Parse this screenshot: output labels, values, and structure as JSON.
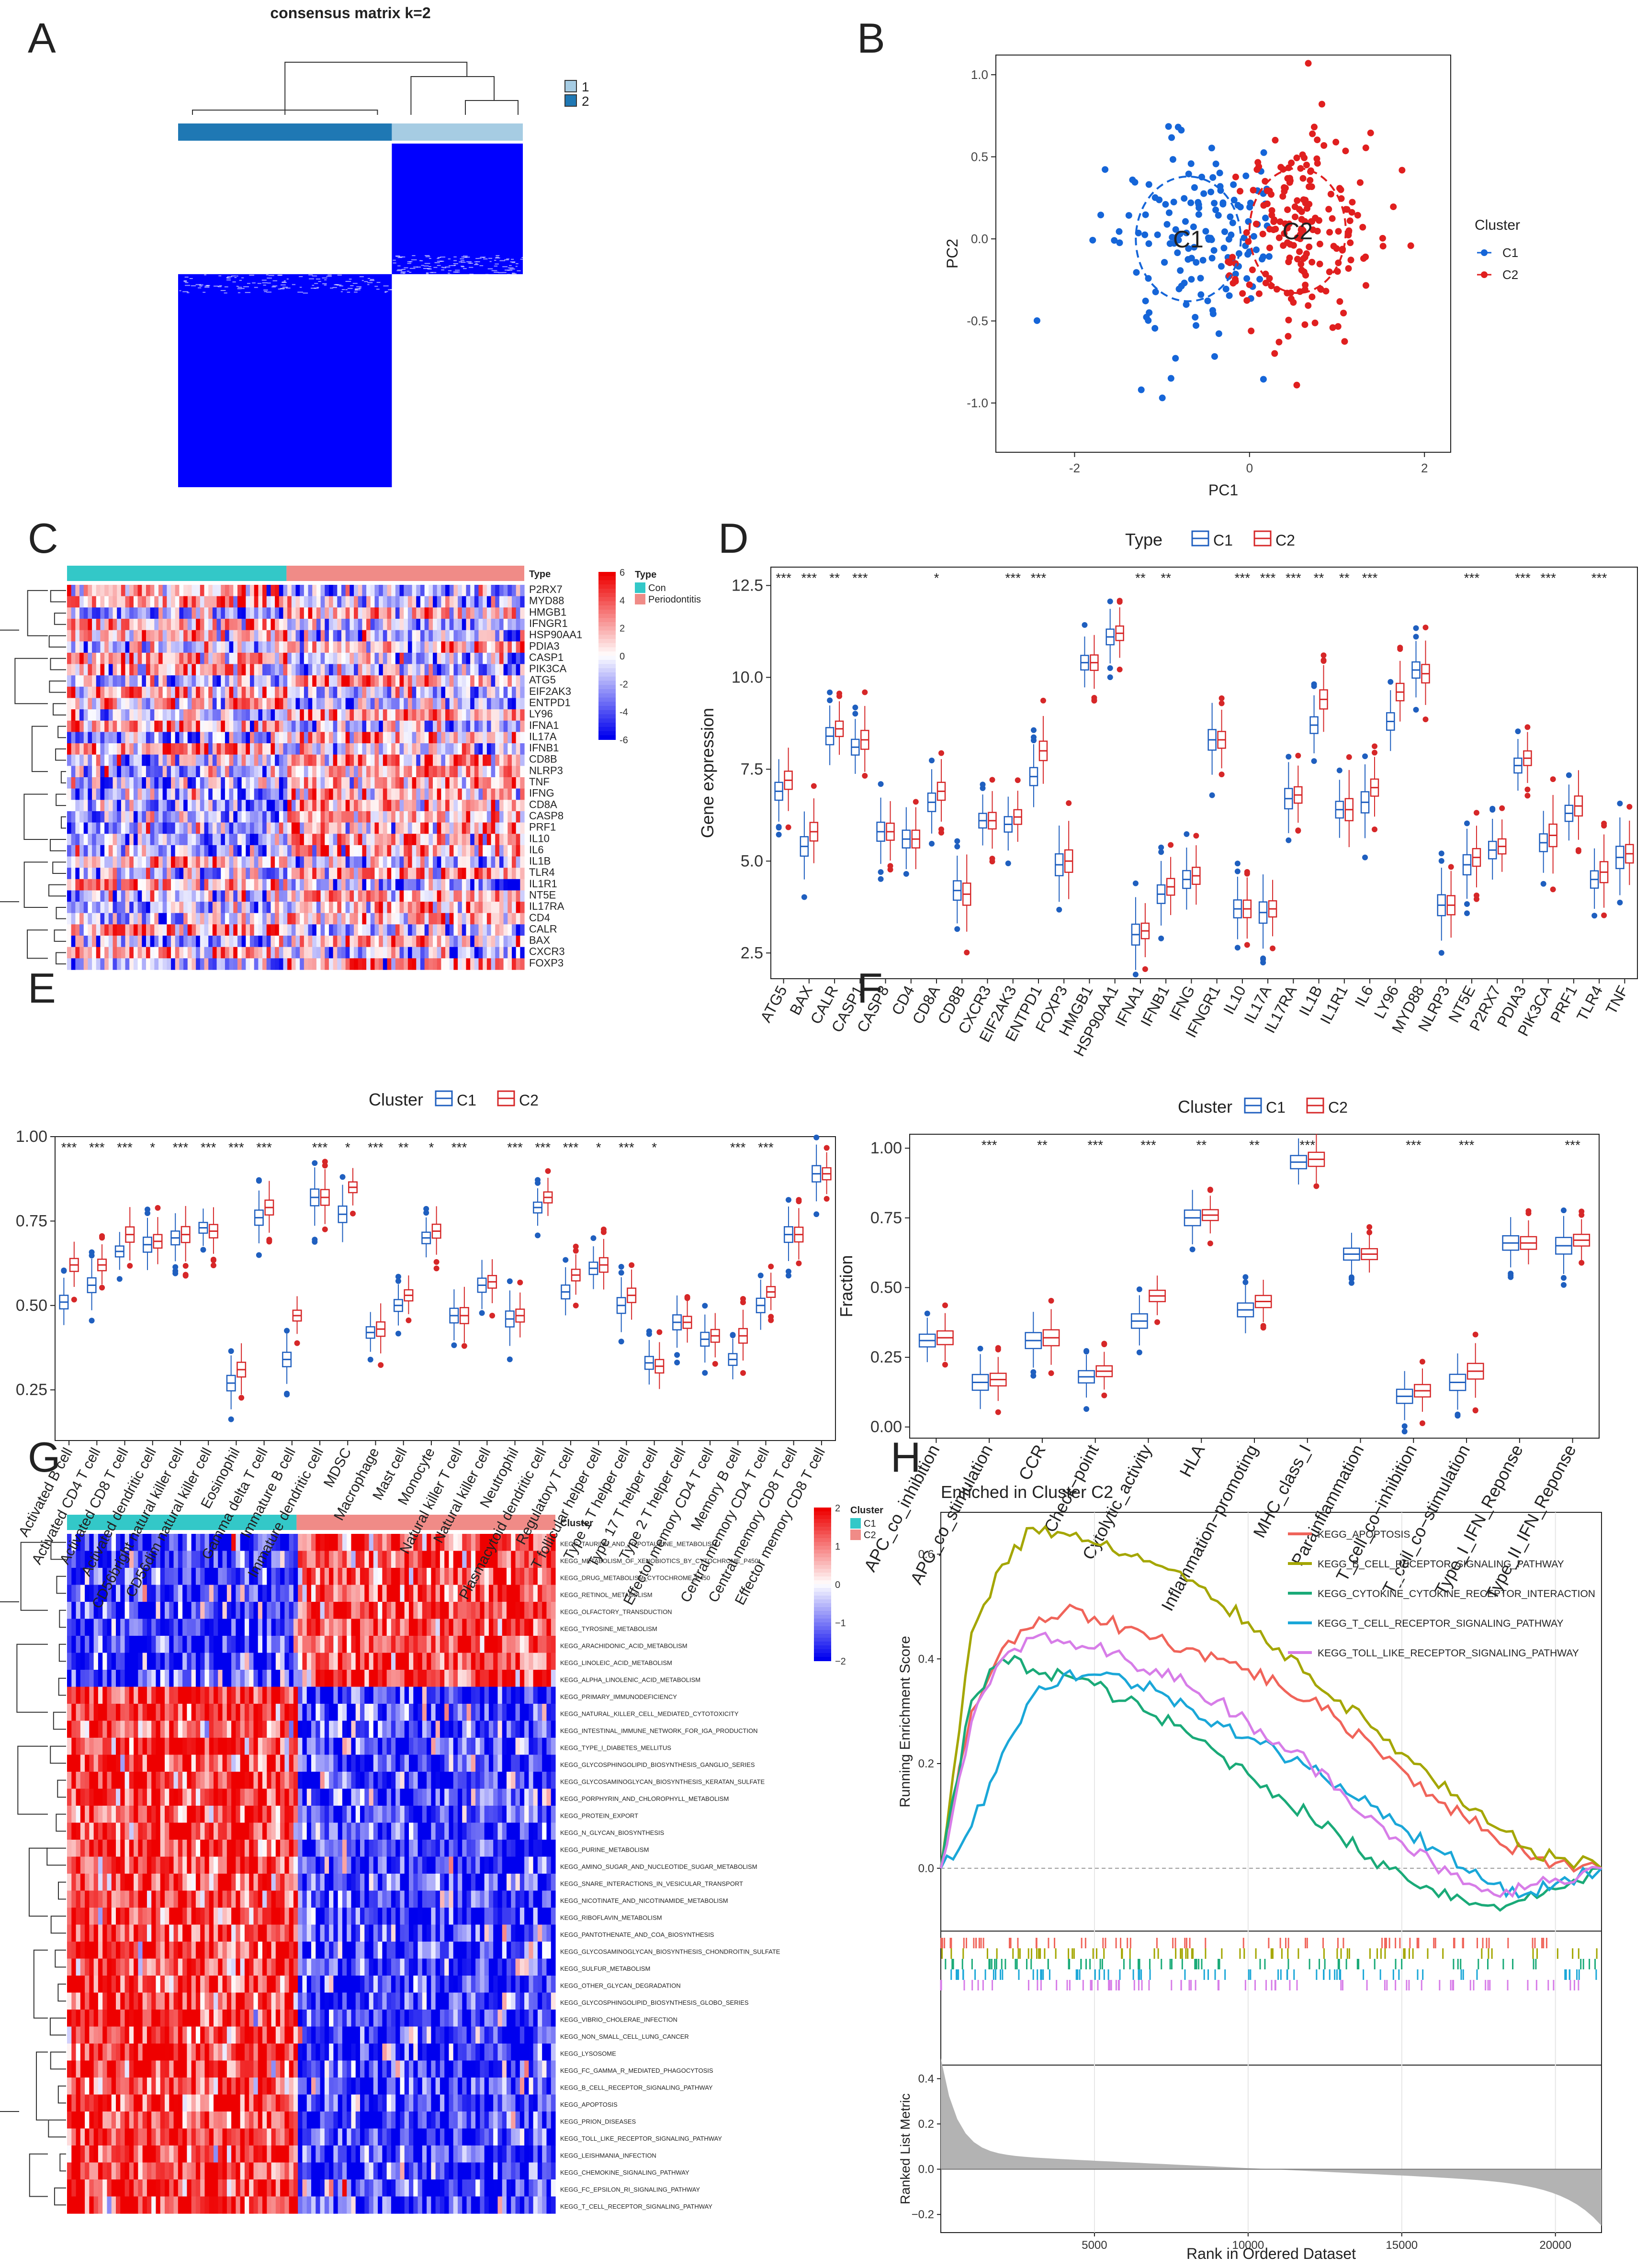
{
  "figure": {
    "panel_labels": [
      "A",
      "B",
      "C",
      "D",
      "E",
      "F",
      "G",
      "H"
    ]
  },
  "chart_data": [
    {
      "id": "A",
      "type": "heatmap",
      "title": "consensus matrix k=2",
      "legend": [
        "1",
        "2"
      ],
      "colors": {
        "cluster1": "#a6cce3",
        "cluster2": "#1f78b4",
        "high": "#0000ff",
        "low": "#ffffff"
      },
      "blocks": [
        {
          "cluster": "1",
          "fraction": 0.38
        },
        {
          "cluster": "2",
          "fraction": 0.62
        }
      ]
    },
    {
      "id": "B",
      "type": "scatter",
      "xlabel": "PC1",
      "ylabel": "PC2",
      "xlim": [
        -2.9,
        2.3
      ],
      "ylim": [
        -1.3,
        1.12
      ],
      "xticks": [
        "-2",
        "0",
        "2"
      ],
      "xtick_values": [
        -2,
        0,
        2
      ],
      "yticks": [
        "-1.0",
        "-0.5",
        "0.0",
        "0.5",
        "1.0"
      ],
      "ytick_values": [
        -1.0,
        -0.5,
        0.0,
        0.5,
        1.0
      ],
      "legend_title": "Cluster",
      "series": [
        {
          "name": "C1",
          "color": "#1565d8",
          "center": [
            -0.7,
            0.0
          ],
          "spread": [
            0.6,
            0.38
          ],
          "n": 150
        },
        {
          "name": "C2",
          "color": "#e01f1f",
          "center": [
            0.55,
            0.05
          ],
          "spread": [
            0.55,
            0.38
          ],
          "n": 190
        }
      ],
      "ellipse_labels": [
        "C1",
        "C2"
      ]
    },
    {
      "id": "C",
      "type": "heatmap",
      "annotation_title": "Type",
      "groups": [
        "Con",
        "Periodontitis"
      ],
      "group_colors": [
        "#33c8c8",
        "#f08b87"
      ],
      "group_fraction": 0.48,
      "scale_ticks": [
        "6",
        "4",
        "2",
        "0",
        "-2",
        "-4",
        "-6"
      ],
      "rows": [
        "P2RX7",
        "MYD88",
        "HMGB1",
        "IFNGR1",
        "HSP90AA1",
        "PDIA3",
        "CASP1",
        "PIK3CA",
        "ATG5",
        "EIF2AK3",
        "ENTPD1",
        "LY96",
        "IFNA1",
        "IL17A",
        "IFNB1",
        "CD8B",
        "NLRP3",
        "TNF",
        "IFNG",
        "CD8A",
        "CASP8",
        "PRF1",
        "IL10",
        "IL6",
        "IL1B",
        "TLR4",
        "IL1R1",
        "NT5E",
        "IL17RA",
        "CD4",
        "CALR",
        "BAX",
        "CXCR3",
        "FOXP3"
      ]
    },
    {
      "id": "D",
      "type": "boxplot",
      "legend_title": "Type",
      "legend": [
        "C1",
        "C2"
      ],
      "colors": [
        "#1f5fbf",
        "#d62728"
      ],
      "ylabel": "Gene expression",
      "ylim": [
        1.8,
        13.0
      ],
      "yticks": [
        "2.5",
        "5.0",
        "7.5",
        "10.0",
        "12.5"
      ],
      "ytick_values": [
        2.5,
        5.0,
        7.5,
        10.0,
        12.5
      ],
      "categories": [
        "ATG5",
        "BAX",
        "CALR",
        "CASP1",
        "CASP8",
        "CD4",
        "CD8A",
        "CD8B",
        "CXCR3",
        "EIF2AK3",
        "ENTPD1",
        "FOXP3",
        "HMGB1",
        "HSP90AA1",
        "IFNA1",
        "IFNB1",
        "IFNG",
        "IFNGR1",
        "IL10",
        "IL17A",
        "IL17RA",
        "IL1B",
        "IL1R1",
        "IL6",
        "LY96",
        "MYD88",
        "NLRP3",
        "NT5E",
        "P2RX7",
        "PDIA3",
        "PIK3CA",
        "PRF1",
        "TLR4",
        "TNF"
      ],
      "significance": [
        "***",
        "***",
        "**",
        "***",
        "",
        "",
        "*",
        "",
        "",
        "***",
        "***",
        "",
        "",
        "",
        "**",
        "**",
        "",
        "",
        "***",
        "***",
        "***",
        "**",
        "**",
        "***",
        "",
        "",
        "",
        "***",
        "",
        "***",
        "***",
        "",
        "***",
        ""
      ],
      "series": [
        {
          "name": "C1",
          "medians": [
            6.9,
            5.4,
            8.4,
            8.1,
            5.8,
            5.6,
            6.6,
            4.2,
            6.1,
            6.0,
            7.3,
            4.9,
            10.4,
            11.1,
            3.0,
            4.1,
            4.5,
            8.3,
            3.7,
            3.6,
            6.7,
            8.7,
            6.4,
            6.6,
            8.8,
            10.2,
            3.8,
            4.9,
            5.3,
            7.6,
            5.5,
            6.3,
            4.5,
            5.1
          ]
        },
        {
          "name": "C2",
          "medians": [
            7.2,
            5.8,
            8.6,
            8.3,
            5.8,
            5.6,
            6.9,
            4.1,
            6.1,
            6.2,
            8.0,
            5.0,
            10.4,
            11.2,
            3.1,
            4.3,
            4.6,
            8.3,
            3.7,
            3.7,
            6.8,
            9.4,
            6.4,
            7.0,
            9.6,
            10.1,
            3.8,
            5.1,
            5.4,
            7.8,
            5.7,
            6.5,
            4.7,
            5.2
          ]
        }
      ]
    },
    {
      "id": "E",
      "type": "boxplot",
      "legend_title": "Cluster",
      "legend": [
        "C1",
        "C2"
      ],
      "colors": [
        "#1f5fbf",
        "#d62728"
      ],
      "ylabel": "Fraction",
      "ylim": [
        0.1,
        1.0
      ],
      "yticks": [
        "0.25",
        "0.50",
        "0.75",
        "1.00"
      ],
      "ytick_values": [
        0.25,
        0.5,
        0.75,
        1.0
      ],
      "categories": [
        "Activated B cell",
        "Activated CD4 T cell",
        "Activated CD8 T cell",
        "Activated dendritic cell",
        "CD56bright natural killer cell",
        "CD56dim natural killer cell",
        "Eosinophil",
        "Gamma delta T cell",
        "Immature B cell",
        "Immature dendritic cell",
        "MDSC",
        "Macrophage",
        "Mast cell",
        "Monocyte",
        "Natural killer T cell",
        "Natural killer cell",
        "Neutrophil",
        "Plasmacytoid dendritic cell",
        "Regulatory T cell",
        "T follicular helper cell",
        "Type 1 T helper cell",
        "Type 17 T helper cell",
        "Type 2 T helper cell",
        "Effector memory CD4 T cell",
        "Memory B cell",
        "Central memory CD4 T cell",
        "Central memory CD8 T cell",
        "Effector memory CD8 T cell"
      ],
      "significance": [
        "***",
        "***",
        "***",
        "*",
        "***",
        "***",
        "***",
        "***",
        "",
        "***",
        "*",
        "***",
        "**",
        "*",
        "***",
        "",
        "***",
        "***",
        "***",
        "*",
        "***",
        "*",
        "",
        "",
        "***",
        "***",
        "",
        ""
      ],
      "series": [
        {
          "name": "C1",
          "medians": [
            0.51,
            0.56,
            0.66,
            0.68,
            0.7,
            0.73,
            0.27,
            0.76,
            0.34,
            0.82,
            0.77,
            0.42,
            0.5,
            0.7,
            0.47,
            0.56,
            0.46,
            0.79,
            0.54,
            0.61,
            0.5,
            0.33,
            0.45,
            0.4,
            0.34,
            0.5,
            0.71,
            0.89
          ]
        },
        {
          "name": "C2",
          "medians": [
            0.62,
            0.62,
            0.71,
            0.69,
            0.71,
            0.72,
            0.31,
            0.79,
            0.47,
            0.82,
            0.85,
            0.43,
            0.53,
            0.72,
            0.47,
            0.57,
            0.47,
            0.82,
            0.59,
            0.62,
            0.53,
            0.32,
            0.45,
            0.41,
            0.41,
            0.54,
            0.71,
            0.89
          ]
        }
      ]
    },
    {
      "id": "F",
      "type": "boxplot",
      "legend_title": "Cluster",
      "legend": [
        "C1",
        "C2"
      ],
      "colors": [
        "#1f5fbf",
        "#d62728"
      ],
      "ylabel": "Fraction",
      "ylim": [
        -0.04,
        1.05
      ],
      "yticks": [
        "0.00",
        "0.25",
        "0.50",
        "0.75",
        "1.00"
      ],
      "ytick_values": [
        0.0,
        0.25,
        0.5,
        0.75,
        1.0
      ],
      "categories": [
        "APC_co_inhibition",
        "APC_co_stimulation",
        "CCR",
        "Check−point",
        "Cytolytic_activity",
        "HLA",
        "Inflammation−promoting",
        "MHC_class_I",
        "Parainflammation",
        "T_cell_co−inhibition",
        "T_cell_co−stimulation",
        "Type_I_IFN_Reponse",
        "Type_II_IFN_Reponse"
      ],
      "significance": [
        "",
        "***",
        "**",
        "***",
        "***",
        "**",
        "**",
        "***",
        "",
        "***",
        "***",
        "",
        "***"
      ],
      "series": [
        {
          "name": "C1",
          "medians": [
            0.31,
            0.16,
            0.31,
            0.18,
            0.38,
            0.75,
            0.42,
            0.95,
            0.62,
            0.11,
            0.16,
            0.66,
            0.65
          ]
        },
        {
          "name": "C2",
          "medians": [
            0.32,
            0.17,
            0.32,
            0.2,
            0.47,
            0.76,
            0.45,
            0.96,
            0.62,
            0.13,
            0.2,
            0.66,
            0.67
          ]
        }
      ]
    },
    {
      "id": "G",
      "type": "heatmap",
      "annotation_title": "Cluster",
      "groups": [
        "C1",
        "C2"
      ],
      "group_colors": [
        "#33c8c8",
        "#f08b87"
      ],
      "group_fraction": 0.47,
      "scale_ticks": [
        "2",
        "1",
        "0",
        "−1",
        "−2"
      ],
      "rows": [
        "KEGG_TAURINE_AND_HYPOTAURINE_METABOLISM",
        "KEGG_METABOLISM_OF_XENOBIOTICS_BY_CYTOCHROME_P450",
        "KEGG_DRUG_METABOLISM_CYTOCHROME_P450",
        "KEGG_RETINOL_METABOLISM",
        "KEGG_OLFACTORY_TRANSDUCTION",
        "KEGG_TYROSINE_METABOLISM",
        "KEGG_ARACHIDONIC_ACID_METABOLISM",
        "KEGG_LINOLEIC_ACID_METABOLISM",
        "KEGG_ALPHA_LINOLENIC_ACID_METABOLISM",
        "KEGG_PRIMARY_IMMUNODEFICIENCY",
        "KEGG_NATURAL_KILLER_CELL_MEDIATED_CYTOTOXICITY",
        "KEGG_INTESTINAL_IMMUNE_NETWORK_FOR_IGA_PRODUCTION",
        "KEGG_TYPE_I_DIABETES_MELLITUS",
        "KEGG_GLYCOSPHINGOLIPID_BIOSYNTHESIS_GANGLIO_SERIES",
        "KEGG_GLYCOSAMINOGLYCAN_BIOSYNTHESIS_KERATAN_SULFATE",
        "KEGG_PORPHYRIN_AND_CHLOROPHYLL_METABOLISM",
        "KEGG_PROTEIN_EXPORT",
        "KEGG_N_GLYCAN_BIOSYNTHESIS",
        "KEGG_PURINE_METABOLISM",
        "KEGG_AMINO_SUGAR_AND_NUCLEOTIDE_SUGAR_METABOLISM",
        "KEGG_SNARE_INTERACTIONS_IN_VESICULAR_TRANSPORT",
        "KEGG_NICOTINATE_AND_NICOTINAMIDE_METABOLISM",
        "KEGG_RIBOFLAVIN_METABOLISM",
        "KEGG_PANTOTHENATE_AND_COA_BIOSYNTHESIS",
        "KEGG_GLYCOSAMINOGLYCAN_BIOSYNTHESIS_CHONDROITIN_SULFATE",
        "KEGG_SULFUR_METABOLISM",
        "KEGG_OTHER_GLYCAN_DEGRADATION",
        "KEGG_GLYCOSPHINGOLIPID_BIOSYNTHESIS_GLOBO_SERIES",
        "KEGG_VIBRIO_CHOLERAE_INFECTION",
        "KEGG_NON_SMALL_CELL_LUNG_CANCER",
        "KEGG_LYSOSOME",
        "KEGG_FC_GAMMA_R_MEDIATED_PHAGOCYTOSIS",
        "KEGG_B_CELL_RECEPTOR_SIGNALING_PATHWAY",
        "KEGG_APOPTOSIS",
        "KEGG_PRION_DISEASES",
        "KEGG_TOLL_LIKE_RECEPTOR_SIGNALING_PATHWAY",
        "KEGG_LEISHMANIA_INFECTION",
        "KEGG_CHEMOKINE_SIGNALING_PATHWAY",
        "KEGG_FC_EPSILON_RI_SIGNALING_PATHWAY",
        "KEGG_T_CELL_RECEPTOR_SIGNALING_PATHWAY"
      ],
      "row_direction": [
        1,
        1,
        1,
        1,
        1,
        1,
        1,
        1,
        1,
        -1,
        -1,
        -1,
        -1,
        -1,
        -1,
        -1,
        -1,
        -1,
        -1,
        -1,
        -1,
        -1,
        -1,
        -1,
        -1,
        -1,
        -1,
        -1,
        -1,
        -1,
        -1,
        -1,
        -1,
        -1,
        -1,
        -1,
        -1,
        -1,
        -1,
        -1
      ]
    },
    {
      "id": "H",
      "type": "line",
      "title": "Enriched in Cluster C2",
      "ylabel": "Running Enrichment Score",
      "ylabel2": "Ranked List Metric",
      "xlabel": "Rank in Ordered Dataset",
      "xlim": [
        0,
        21500
      ],
      "xticks": [
        "5000",
        "10000",
        "15000",
        "20000"
      ],
      "xtick_values": [
        5000,
        10000,
        15000,
        20000
      ],
      "ylim": [
        -0.12,
        0.68
      ],
      "yticks": [
        "0.0",
        "0.2",
        "0.4",
        "0.6"
      ],
      "ytick_values": [
        0.0,
        0.2,
        0.4,
        0.6
      ],
      "ylim2": [
        -0.28,
        0.46
      ],
      "yticks2": [
        "0.4",
        "0.2",
        "0.0",
        "−0.2"
      ],
      "ytick_values2": [
        0.4,
        0.2,
        0.0,
        -0.2
      ],
      "x": [
        0,
        1000,
        2000,
        3000,
        4000,
        5000,
        6000,
        7000,
        8000,
        9000,
        10000,
        11000,
        12000,
        13000,
        14000,
        15000,
        16000,
        17000,
        18000,
        19000,
        20000,
        21500
      ],
      "series": [
        {
          "name": "KEGG_APOPTOSIS",
          "color": "#f0645a",
          "values": [
            0.0,
            0.3,
            0.42,
            0.46,
            0.49,
            0.48,
            0.46,
            0.44,
            0.42,
            0.4,
            0.38,
            0.35,
            0.32,
            0.28,
            0.24,
            0.19,
            0.14,
            0.1,
            0.06,
            0.03,
            0.01,
            0.0
          ]
        },
        {
          "name": "KEGG_B_CELL_RECEPTOR_SIGNALING_PATHWAY",
          "color": "#a4a600",
          "values": [
            0.0,
            0.45,
            0.58,
            0.65,
            0.64,
            0.62,
            0.6,
            0.58,
            0.55,
            0.51,
            0.47,
            0.42,
            0.37,
            0.32,
            0.27,
            0.22,
            0.17,
            0.12,
            0.08,
            0.04,
            0.02,
            0.0
          ]
        },
        {
          "name": "KEGG_CYTOKINE_CYTOKINE_RECEPTOR_INTERACTION",
          "color": "#1aaa78",
          "values": [
            0.0,
            0.32,
            0.4,
            0.38,
            0.37,
            0.35,
            0.32,
            0.29,
            0.26,
            0.22,
            0.18,
            0.14,
            0.1,
            0.06,
            0.02,
            -0.01,
            -0.04,
            -0.06,
            -0.07,
            -0.06,
            -0.04,
            0.0
          ]
        },
        {
          "name": "KEGG_T_CELL_RECEPTOR_SIGNALING_PATHWAY",
          "color": "#1aa7d8",
          "values": [
            0.0,
            0.08,
            0.22,
            0.33,
            0.37,
            0.37,
            0.36,
            0.34,
            0.31,
            0.28,
            0.25,
            0.22,
            0.19,
            0.16,
            0.12,
            0.08,
            0.04,
            0.0,
            -0.03,
            -0.05,
            -0.03,
            0.0
          ]
        },
        {
          "name": "KEGG_TOLL_LIKE_RECEPTOR_SIGNALING_PATHWAY",
          "color": "#d77de8",
          "values": [
            0.0,
            0.28,
            0.4,
            0.44,
            0.43,
            0.42,
            0.4,
            0.38,
            0.35,
            0.32,
            0.28,
            0.24,
            0.2,
            0.15,
            0.1,
            0.05,
            0.01,
            -0.03,
            -0.05,
            -0.04,
            -0.02,
            0.0
          ]
        }
      ]
    }
  ]
}
